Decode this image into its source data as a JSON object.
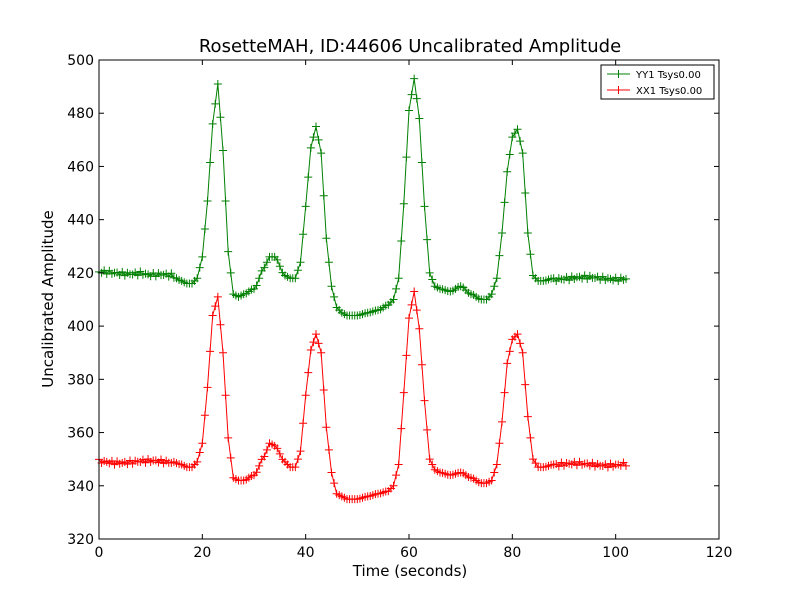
{
  "chart_data": {
    "type": "line",
    "title": "RosetteMAH, ID:44606 Uncalibrated Amplitude",
    "xlabel": "Time (seconds)",
    "ylabel": "Uncalibrated Amplitude",
    "xlim": [
      0,
      120
    ],
    "ylim": [
      320,
      500
    ],
    "xticks": [
      "0",
      "20",
      "40",
      "60",
      "80",
      "100",
      "120"
    ],
    "yticks": [
      "320",
      "340",
      "360",
      "380",
      "400",
      "420",
      "440",
      "460",
      "480",
      "500"
    ],
    "grid": false,
    "legend_position": "top-right",
    "marker": "plus",
    "series": [
      {
        "name": "YY1 Tsys0.00",
        "color": "#008000",
        "baseline": 420,
        "x": [
          0,
          2,
          4,
          6,
          8,
          10,
          12,
          14,
          16,
          17,
          18,
          19,
          20,
          21,
          22,
          23,
          24,
          25,
          26,
          27,
          28,
          30,
          32,
          33,
          34,
          36,
          37,
          38,
          39,
          40,
          41,
          42,
          43,
          44,
          45,
          46,
          47,
          48,
          50,
          52,
          54,
          56,
          57,
          58,
          59,
          60,
          61,
          62,
          63,
          64,
          65,
          66,
          68,
          70,
          72,
          74,
          75,
          76,
          77,
          78,
          79,
          80,
          81,
          82,
          83,
          84,
          85,
          86,
          88,
          90,
          92,
          94,
          96,
          98,
          100,
          102
        ],
        "values": [
          420,
          420,
          420,
          420,
          420,
          419,
          419,
          419,
          417,
          416,
          416,
          418,
          426,
          447,
          476,
          491,
          466,
          428,
          412,
          411,
          412,
          414,
          422,
          426,
          426,
          419,
          418,
          418,
          424,
          445,
          467,
          475,
          465,
          433,
          415,
          407,
          405,
          404,
          404,
          405,
          406,
          408,
          410,
          418,
          446,
          481,
          493,
          478,
          445,
          420,
          415,
          414,
          413,
          415,
          412,
          410,
          410,
          412,
          418,
          435,
          458,
          471,
          474,
          465,
          435,
          419,
          417,
          417,
          418,
          418,
          418,
          418,
          418,
          418,
          418,
          418
        ]
      },
      {
        "name": "XX1 Tsys0.00",
        "color": "#ff0000",
        "baseline": 349,
        "x": [
          0,
          2,
          4,
          6,
          8,
          10,
          12,
          14,
          16,
          17,
          18,
          19,
          20,
          21,
          22,
          23,
          24,
          25,
          26,
          27,
          28,
          30,
          32,
          33,
          34,
          36,
          37,
          38,
          39,
          40,
          41,
          42,
          43,
          44,
          45,
          46,
          47,
          48,
          50,
          52,
          54,
          56,
          57,
          58,
          59,
          60,
          61,
          62,
          63,
          64,
          65,
          66,
          68,
          70,
          72,
          74,
          75,
          76,
          77,
          78,
          79,
          80,
          81,
          82,
          83,
          84,
          85,
          86,
          88,
          90,
          92,
          94,
          96,
          98,
          100,
          102
        ],
        "values": [
          349,
          349,
          349,
          349,
          349,
          349,
          349,
          349,
          348,
          347,
          347,
          349,
          356,
          377,
          404,
          411,
          390,
          358,
          343,
          342,
          342,
          344,
          351,
          356,
          355,
          349,
          347,
          347,
          353,
          374,
          391,
          397,
          390,
          362,
          345,
          337,
          336,
          335,
          335,
          336,
          337,
          338,
          340,
          348,
          375,
          403,
          413,
          399,
          372,
          350,
          346,
          345,
          344,
          345,
          343,
          341,
          341,
          342,
          348,
          364,
          386,
          395,
          397,
          390,
          366,
          350,
          347,
          347,
          348,
          348,
          348,
          348,
          348,
          348,
          348,
          348
        ]
      }
    ]
  }
}
